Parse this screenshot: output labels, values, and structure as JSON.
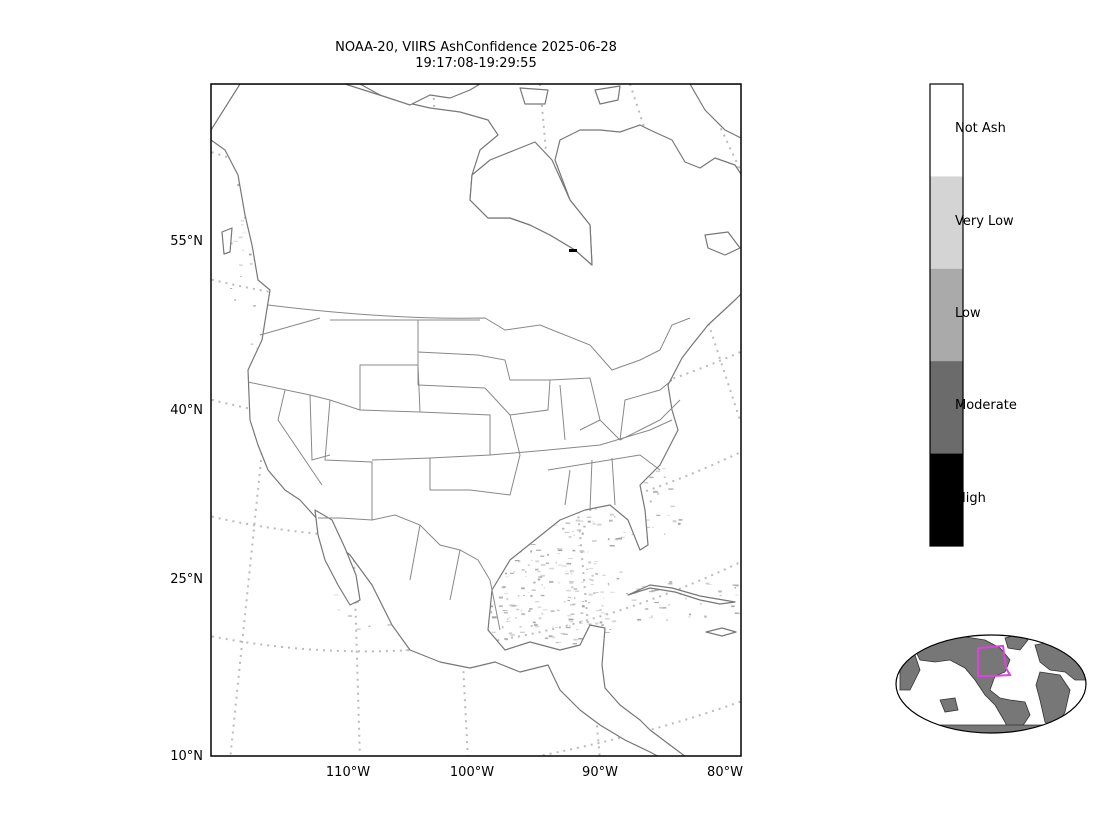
{
  "title": {
    "line1": "NOAA-20, VIIRS AshConfidence 2025-06-28",
    "line2": "19:17:08-19:29:55"
  },
  "latitude_labels": [
    "55°N",
    "40°N",
    "25°N",
    "10°N"
  ],
  "longitude_labels": [
    "110°W",
    "100°W",
    "90°W",
    "80°W"
  ],
  "colorbar": {
    "categories": [
      {
        "label": "Not Ash",
        "color": "#ffffff"
      },
      {
        "label": "Very Low",
        "color": "#d4d4d4"
      },
      {
        "label": "Low",
        "color": "#aaaaaa"
      },
      {
        "label": "Moderate",
        "color": "#6b6b6b"
      },
      {
        "label": "High",
        "color": "#000000"
      }
    ]
  },
  "colors": {
    "coastline": "#777777",
    "gridline": "#bbbbbb",
    "inset_land": "#777777",
    "inset_box": "#e040e0"
  }
}
